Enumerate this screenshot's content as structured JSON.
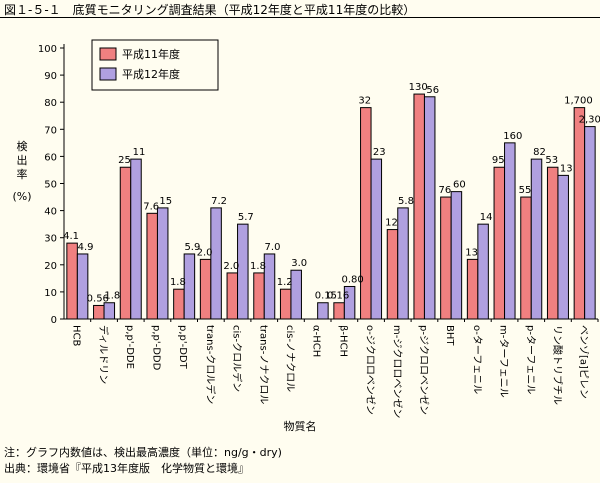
{
  "title": "図１-５-１　底質モニタリング調査結果（平成12年度と平成11年度の比較）",
  "footnotes": [
    "注：グラフ内数値は、検出最高濃度（単位：ng/g・dry)",
    "出典：環境省『平成13年度版　化学物質と環境』"
  ],
  "colors": {
    "series_2000": "#f08080",
    "series_2001": "#b0a0e0",
    "background": "#fffdf0"
  },
  "chart_data": {
    "type": "bar",
    "xlabel": "物質名",
    "ylabel": "検出率(%)",
    "ylim": [
      0,
      100
    ],
    "yticks": [
      0,
      10,
      20,
      30,
      40,
      50,
      60,
      70,
      80,
      90,
      100
    ],
    "legend_position": "top-left",
    "categories": [
      "HCB",
      "ディルドリン",
      "p,p'-DDE",
      "p,p'-DDD",
      "p,p'-DDT",
      "trans-クロルデン",
      "cis-クロルデン",
      "trans-ノナクロル",
      "cis-ノナクロル",
      "α-HCH",
      "β-HCH",
      "o-ジクロロベンゼン",
      "m-ジクロロベンゼン",
      "p-ジクロロベンゼン",
      "BHT",
      "o-ターフェニル",
      "m-ターフェニル",
      "p-ターフェニル",
      "リン酸トリブチル",
      "ベンゾ[a]ピレン"
    ],
    "series": [
      {
        "name": "平成11年度",
        "values": [
          28,
          5,
          56,
          39,
          11,
          22,
          17,
          17,
          11,
          0,
          6,
          78,
          33,
          83,
          45,
          22,
          56,
          45,
          56,
          78
        ],
        "labels": [
          "4.1",
          "0.56",
          "25",
          "7.6",
          "1.8",
          "2.0",
          "2.0",
          "1.8",
          "1.2",
          "",
          "0.16",
          "32",
          "12",
          "130",
          "76",
          "13",
          "95",
          "55",
          "53",
          "1,700"
        ]
      },
      {
        "name": "平成12年度",
        "values": [
          24,
          6,
          59,
          41,
          24,
          41,
          35,
          24,
          18,
          6,
          12,
          59,
          41,
          82,
          47,
          35,
          65,
          59,
          53,
          71
        ],
        "labels": [
          "4.9",
          "1.8",
          "11",
          "15",
          "5.9",
          "7.2",
          "5.7",
          "7.0",
          "3.0",
          "0.15",
          "0.80",
          "23",
          "5.8",
          "56",
          "60",
          "14",
          "160",
          "82",
          "13",
          "2,300"
        ]
      }
    ]
  }
}
